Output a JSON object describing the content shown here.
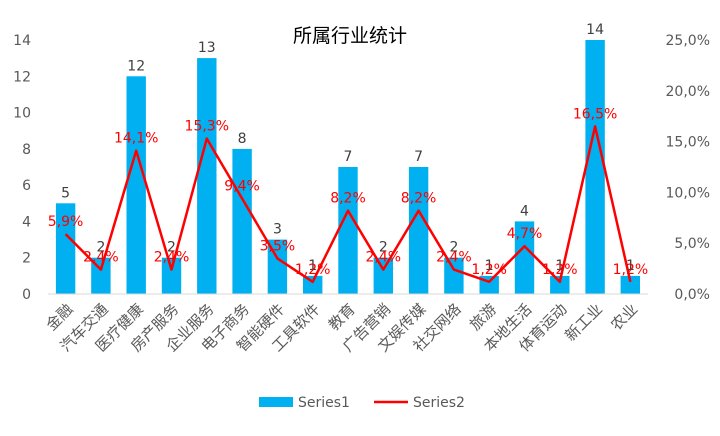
{
  "chart_data": {
    "type": "bar",
    "title": "所属行业统计",
    "categories": [
      "金融",
      "汽车交通",
      "医疗健康",
      "房产服务",
      "企业服务",
      "电子商务",
      "智能硬件",
      "工具软件",
      "教育",
      "广告营销",
      "文娱传媒",
      "社交网络",
      "旅游",
      "本地生活",
      "体育运动",
      "新工业",
      "农业"
    ],
    "series": [
      {
        "name": "Series1",
        "type": "bar",
        "axis": "left",
        "values": [
          5,
          2,
          12,
          2,
          13,
          8,
          3,
          1,
          7,
          2,
          7,
          2,
          1,
          4,
          1,
          14,
          1
        ],
        "labels": [
          "5",
          "2",
          "12",
          "2",
          "13",
          "8",
          "3",
          "1",
          "7",
          "2",
          "7",
          "2",
          "1",
          "4",
          "1",
          "14",
          "1"
        ],
        "color": "#00B0F0"
      },
      {
        "name": "Series2",
        "type": "line",
        "axis": "right",
        "values": [
          5.9,
          2.4,
          14.1,
          2.4,
          15.3,
          9.4,
          3.5,
          1.2,
          8.2,
          2.4,
          8.2,
          2.4,
          1.2,
          4.7,
          1.2,
          16.5,
          1.2
        ],
        "labels": [
          "5,9%",
          "2,4%",
          "14,1%",
          "2,4%",
          "15,3%",
          "9,4%",
          "3,5%",
          "1,2%",
          "8,2%",
          "2,4%",
          "8,2%",
          "2,4%",
          "1,2%",
          "4,7%",
          "1,2%",
          "16,5%",
          "1,2%"
        ],
        "color": "#FF0000"
      }
    ],
    "y_left": {
      "min": 0,
      "max": 14,
      "ticks": [
        "0",
        "2",
        "4",
        "6",
        "8",
        "10",
        "12",
        "14"
      ]
    },
    "y_right": {
      "min": 0,
      "max": 25,
      "ticks": [
        "0,0%",
        "5,0%",
        "10,0%",
        "15,0%",
        "20,0%",
        "25,0%"
      ]
    },
    "legend": {
      "position": "bottom",
      "items": [
        "Series1",
        "Series2"
      ]
    },
    "grid": false
  }
}
